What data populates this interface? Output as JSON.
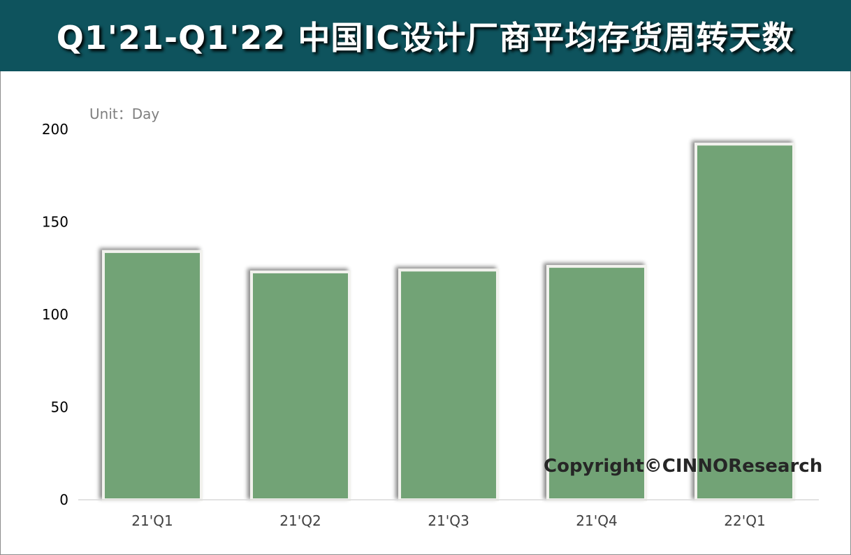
{
  "title": "Q1'21-Q1'22 中国IC设计厂商平均存货周转天数",
  "unit_label": "Unit：Day",
  "copyright": "Copyright©CINNOResearch",
  "colors": {
    "header": "#0e535d",
    "bar": "#72a376"
  },
  "chart_data": {
    "type": "bar",
    "title": "Q1'21-Q1'22 中国IC设计厂商平均存货周转天数",
    "xlabel": "",
    "ylabel": "Unit：Day",
    "categories": [
      "21'Q1",
      "21'Q2",
      "21'Q3",
      "21'Q4",
      "22'Q1"
    ],
    "values": [
      134,
      123,
      124,
      126,
      192
    ],
    "ylim": [
      0,
      200
    ],
    "yticks": [
      0,
      50,
      100,
      150,
      200
    ],
    "grid": false,
    "legend": "none"
  }
}
